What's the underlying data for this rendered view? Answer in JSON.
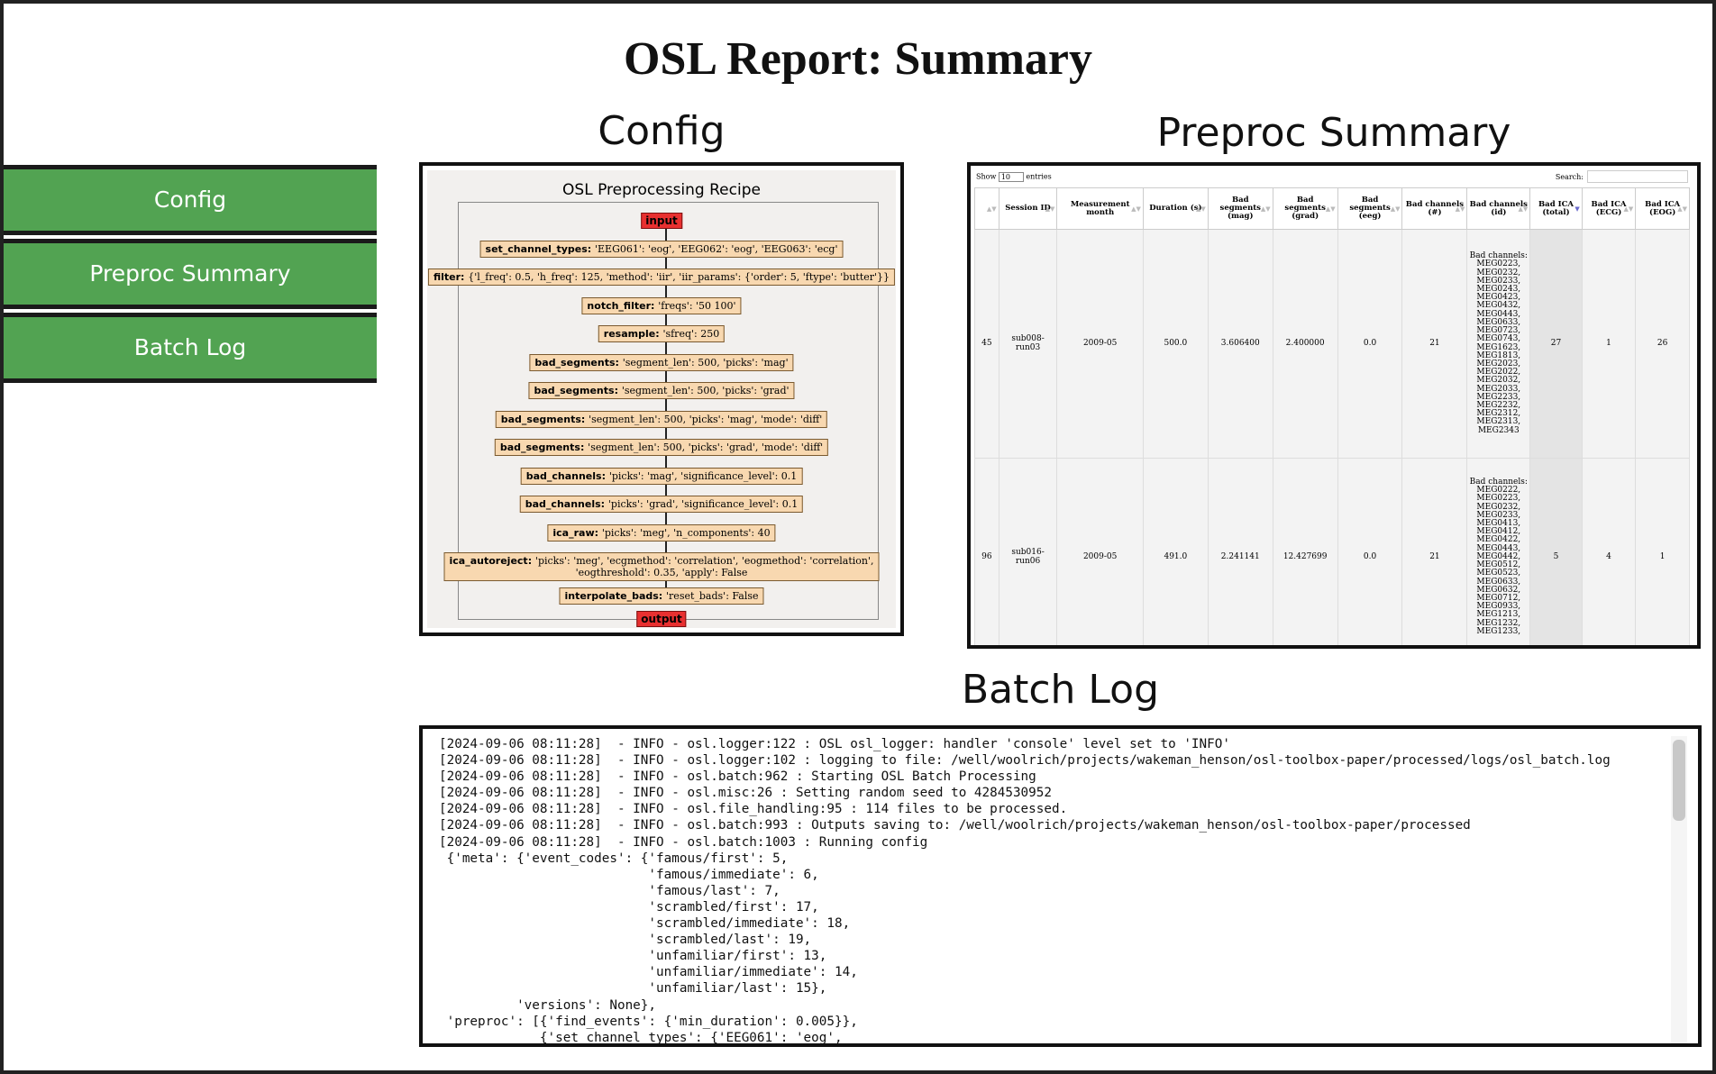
{
  "page": {
    "title": "OSL Report: Summary"
  },
  "sidebar": {
    "items": [
      {
        "label": "Config"
      },
      {
        "label": "Preproc Summary"
      },
      {
        "label": "Batch Log"
      }
    ]
  },
  "sections": {
    "config": "Config",
    "preproc": "Preproc Summary",
    "log": "Batch Log"
  },
  "config": {
    "recipe_title": "OSL Preprocessing Recipe",
    "input_label": "input",
    "output_label": "output",
    "steps": [
      {
        "name": "set_channel_types",
        "params": "'EEG061': 'eog', 'EEG062': 'eog', 'EEG063': 'ecg'"
      },
      {
        "name": "filter",
        "params": "'l_freq': 0.5, 'h_freq': 125, 'method': 'iir', 'iir_params': {'order': 5, 'ftype': 'butter'}"
      },
      {
        "name": "notch_filter",
        "params": "'freqs': '50 100'"
      },
      {
        "name": "resample",
        "params": "'sfreq': 250"
      },
      {
        "name": "bad_segments",
        "params": "'segment_len': 500, 'picks': 'mag'"
      },
      {
        "name": "bad_segments",
        "params": "'segment_len': 500, 'picks': 'grad'"
      },
      {
        "name": "bad_segments",
        "params": "'segment_len': 500, 'picks': 'mag', 'mode': 'diff'"
      },
      {
        "name": "bad_segments",
        "params": "'segment_len': 500, 'picks': 'grad', 'mode': 'diff'"
      },
      {
        "name": "bad_channels",
        "params": "'picks': 'mag', 'significance_level': 0.1"
      },
      {
        "name": "bad_channels",
        "params": "'picks': 'grad', 'significance_level': 0.1"
      },
      {
        "name": "ica_raw",
        "params": "'picks': 'meg', 'n_components': 40"
      },
      {
        "name": "ica_autoreject",
        "params": "'picks': 'meg', 'ecgmethod': 'correlation', 'eogmethod': 'correlation',",
        "params2": "'eogthreshold': 0.35, 'apply': False"
      },
      {
        "name": "interpolate_bads",
        "params": "'reset_bads': False"
      }
    ]
  },
  "preproc": {
    "show_prefix": "Show",
    "show_value": "10",
    "show_suffix": "entries",
    "search_label": "Search:",
    "columns": [
      "",
      "Session ID",
      "Measurement month",
      "Duration (s)",
      "Bad segments (mag)",
      "Bad segments (grad)",
      "Bad segments (eeg)",
      "Bad channels (#)",
      "Bad channels (id)",
      "Bad ICA (total)",
      "Bad ICA (ECG)",
      "Bad ICA (EOG)"
    ],
    "rows": [
      {
        "idx": "45",
        "session": "sub008-run03",
        "month": "2009-05",
        "duration": "500.0",
        "seg_mag": "3.606400",
        "seg_grad": "2.400000",
        "seg_eeg": "0.0",
        "ch_count": "21",
        "ch_ids": "Bad channels: MEG0223, MEG0232, MEG0233, MEG0243, MEG0423, MEG0432, MEG0443, MEG0633, MEG0723, MEG0743, MEG1623, MEG1813, MEG2023, MEG2022, MEG2032, MEG2033, MEG2233, MEG2232, MEG2312, MEG2313, MEG2343",
        "ica_total": "27",
        "ica_ecg": "1",
        "ica_eog": "26"
      },
      {
        "idx": "96",
        "session": "sub016-run06",
        "month": "2009-05",
        "duration": "491.0",
        "seg_mag": "2.241141",
        "seg_grad": "12.427699",
        "seg_eeg": "0.0",
        "ch_count": "21",
        "ch_ids": "Bad channels: MEG0222, MEG0223, MEG0232, MEG0233, MEG0413, MEG0412, MEG0422, MEG0443, MEG0442, MEG0512, MEG0523, MEG0633, MEG0632, MEG0712, MEG0933, MEG1213, MEG1232, MEG1233,",
        "ica_total": "5",
        "ica_ecg": "4",
        "ica_eog": "1"
      }
    ]
  },
  "log": {
    "lines": [
      "[2024-09-06 08:11:28]  - INFO - osl.logger:122 : OSL osl_logger: handler 'console' level set to 'INFO'",
      "[2024-09-06 08:11:28]  - INFO - osl.logger:102 : logging to file: /well/woolrich/projects/wakeman_henson/osl-toolbox-paper/processed/logs/osl_batch.log",
      "[2024-09-06 08:11:28]  - INFO - osl.batch:962 : Starting OSL Batch Processing",
      "[2024-09-06 08:11:28]  - INFO - osl.misc:26 : Setting random seed to 4284530952",
      "[2024-09-06 08:11:28]  - INFO - osl.file_handling:95 : 114 files to be processed.",
      "[2024-09-06 08:11:28]  - INFO - osl.batch:993 : Outputs saving to: /well/woolrich/projects/wakeman_henson/osl-toolbox-paper/processed",
      "[2024-09-06 08:11:28]  - INFO - osl.batch:1003 : Running config",
      " {'meta': {'event_codes': {'famous/first': 5,",
      "                           'famous/immediate': 6,",
      "                           'famous/last': 7,",
      "                           'scrambled/first': 17,",
      "                           'scrambled/immediate': 18,",
      "                           'scrambled/last': 19,",
      "                           'unfamiliar/first': 13,",
      "                           'unfamiliar/immediate': 14,",
      "                           'unfamiliar/last': 15},",
      "          'versions': None},",
      " 'preproc': [{'find_events': {'min_duration': 0.005}},",
      "             {'set_channel_types': {'EEG061': 'eog',"
    ]
  }
}
